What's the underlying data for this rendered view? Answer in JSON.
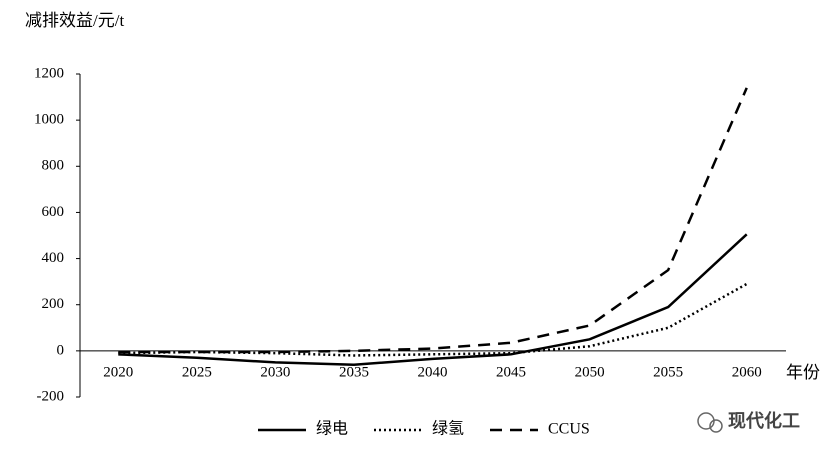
{
  "chart_data": {
    "type": "line",
    "y_label": "减排效益/元/t",
    "x_label": "年份",
    "categories": [
      "2020",
      "2025",
      "2030",
      "2035",
      "2040",
      "2045",
      "2050",
      "2055",
      "2060"
    ],
    "series": [
      {
        "name": "绿电",
        "color": "#000000",
        "dash": "solid",
        "values": [
          -15,
          -30,
          -50,
          -60,
          -35,
          -15,
          50,
          190,
          505
        ]
      },
      {
        "name": "绿氢",
        "color": "#000000",
        "dash": "dotted",
        "values": [
          -10,
          -5,
          -10,
          -20,
          -15,
          -10,
          20,
          100,
          290
        ]
      },
      {
        "name": "CCUS",
        "color": "#000000",
        "dash": "dashed",
        "values": [
          -5,
          -5,
          -5,
          0,
          10,
          35,
          110,
          350,
          1140
        ]
      }
    ],
    "ylim": [
      -200,
      1200
    ],
    "yticks": [
      -200,
      0,
      200,
      400,
      600,
      800,
      1000,
      1200
    ],
    "grid": false,
    "legend": "bottom",
    "watermark": "现代化工"
  }
}
